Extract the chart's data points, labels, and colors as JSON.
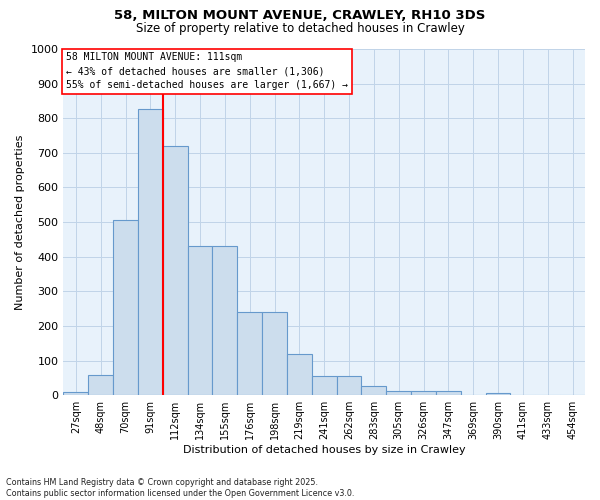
{
  "title_line1": "58, MILTON MOUNT AVENUE, CRAWLEY, RH10 3DS",
  "title_line2": "Size of property relative to detached houses in Crawley",
  "xlabel": "Distribution of detached houses by size in Crawley",
  "ylabel": "Number of detached properties",
  "footnote": "Contains HM Land Registry data © Crown copyright and database right 2025.\nContains public sector information licensed under the Open Government Licence v3.0.",
  "bar_color": "#ccdded",
  "bar_edge_color": "#6699cc",
  "grid_color": "#c0d4e8",
  "background_color": "#e8f2fb",
  "annotation_text": "58 MILTON MOUNT AVENUE: 111sqm\n← 43% of detached houses are smaller (1,306)\n55% of semi-detached houses are larger (1,667) →",
  "redline_bin": 4,
  "categories": [
    "27sqm",
    "48sqm",
    "70sqm",
    "91sqm",
    "112sqm",
    "134sqm",
    "155sqm",
    "176sqm",
    "198sqm",
    "219sqm",
    "241sqm",
    "262sqm",
    "283sqm",
    "305sqm",
    "326sqm",
    "347sqm",
    "369sqm",
    "390sqm",
    "411sqm",
    "433sqm",
    "454sqm"
  ],
  "values": [
    8,
    58,
    505,
    828,
    720,
    430,
    430,
    240,
    240,
    120,
    55,
    55,
    28,
    12,
    12,
    12,
    1,
    5,
    1,
    0,
    0
  ],
  "ylim": [
    0,
    1000
  ],
  "yticks": [
    0,
    100,
    200,
    300,
    400,
    500,
    600,
    700,
    800,
    900,
    1000
  ]
}
